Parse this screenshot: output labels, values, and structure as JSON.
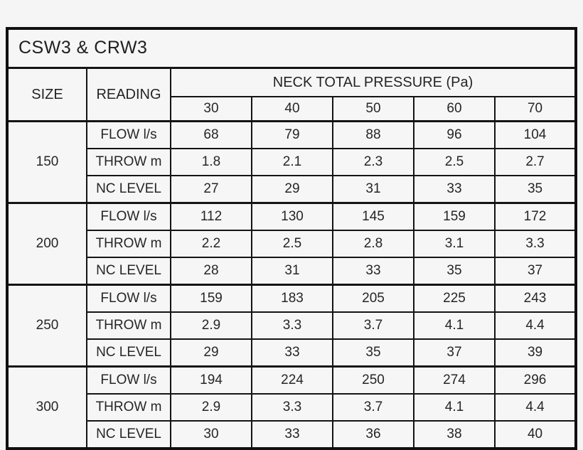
{
  "page": {
    "background_color": "#f5f5f5",
    "table_border_color": "#141414",
    "cell_background_color": "#f6f6f6",
    "text_color": "#262626"
  },
  "table": {
    "title": "CSW3 & CRW3",
    "header": {
      "size_label": "SIZE",
      "reading_label": "READING",
      "pressure_label": "NECK TOTAL PRESSURE (Pa)",
      "pressure_values": [
        "30",
        "40",
        "50",
        "60",
        "70"
      ]
    },
    "groups": [
      {
        "size": "150",
        "rows": [
          {
            "reading": "FLOW l/s",
            "values": [
              "68",
              "79",
              "88",
              "96",
              "104"
            ]
          },
          {
            "reading": "THROW m",
            "values": [
              "1.8",
              "2.1",
              "2.3",
              "2.5",
              "2.7"
            ]
          },
          {
            "reading": "NC LEVEL",
            "values": [
              "27",
              "29",
              "31",
              "33",
              "35"
            ]
          }
        ]
      },
      {
        "size": "200",
        "rows": [
          {
            "reading": "FLOW l/s",
            "values": [
              "112",
              "130",
              "145",
              "159",
              "172"
            ]
          },
          {
            "reading": "THROW m",
            "values": [
              "2.2",
              "2.5",
              "2.8",
              "3.1",
              "3.3"
            ]
          },
          {
            "reading": "NC LEVEL",
            "values": [
              "28",
              "31",
              "33",
              "35",
              "37"
            ]
          }
        ]
      },
      {
        "size": "250",
        "rows": [
          {
            "reading": "FLOW l/s",
            "values": [
              "159",
              "183",
              "205",
              "225",
              "243"
            ]
          },
          {
            "reading": "THROW m",
            "values": [
              "2.9",
              "3.3",
              "3.7",
              "4.1",
              "4.4"
            ]
          },
          {
            "reading": "NC LEVEL",
            "values": [
              "29",
              "33",
              "35",
              "37",
              "39"
            ]
          }
        ]
      },
      {
        "size": "300",
        "rows": [
          {
            "reading": "FLOW l/s",
            "values": [
              "194",
              "224",
              "250",
              "274",
              "296"
            ]
          },
          {
            "reading": "THROW m",
            "values": [
              "2.9",
              "3.3",
              "3.7",
              "4.1",
              "4.4"
            ]
          },
          {
            "reading": "NC LEVEL",
            "values": [
              "30",
              "33",
              "36",
              "38",
              "40"
            ]
          }
        ]
      }
    ]
  },
  "chart_data": {
    "type": "table",
    "title": "CSW3 & CRW3",
    "column_group_label": "NECK TOTAL PRESSURE (Pa)",
    "columns": [
      "SIZE",
      "READING",
      "30",
      "40",
      "50",
      "60",
      "70"
    ],
    "rows": [
      [
        "150",
        "FLOW l/s",
        68,
        79,
        88,
        96,
        104
      ],
      [
        "150",
        "THROW m",
        1.8,
        2.1,
        2.3,
        2.5,
        2.7
      ],
      [
        "150",
        "NC LEVEL",
        27,
        29,
        31,
        33,
        35
      ],
      [
        "200",
        "FLOW l/s",
        112,
        130,
        145,
        159,
        172
      ],
      [
        "200",
        "THROW m",
        2.2,
        2.5,
        2.8,
        3.1,
        3.3
      ],
      [
        "200",
        "NC LEVEL",
        28,
        31,
        33,
        35,
        37
      ],
      [
        "250",
        "FLOW l/s",
        159,
        183,
        205,
        225,
        243
      ],
      [
        "250",
        "THROW m",
        2.9,
        3.3,
        3.7,
        4.1,
        4.4
      ],
      [
        "250",
        "NC LEVEL",
        29,
        33,
        35,
        37,
        39
      ],
      [
        "300",
        "FLOW l/s",
        194,
        224,
        250,
        274,
        296
      ],
      [
        "300",
        "THROW m",
        2.9,
        3.3,
        3.7,
        4.1,
        4.4
      ],
      [
        "300",
        "NC LEVEL",
        30,
        33,
        36,
        38,
        40
      ]
    ]
  }
}
